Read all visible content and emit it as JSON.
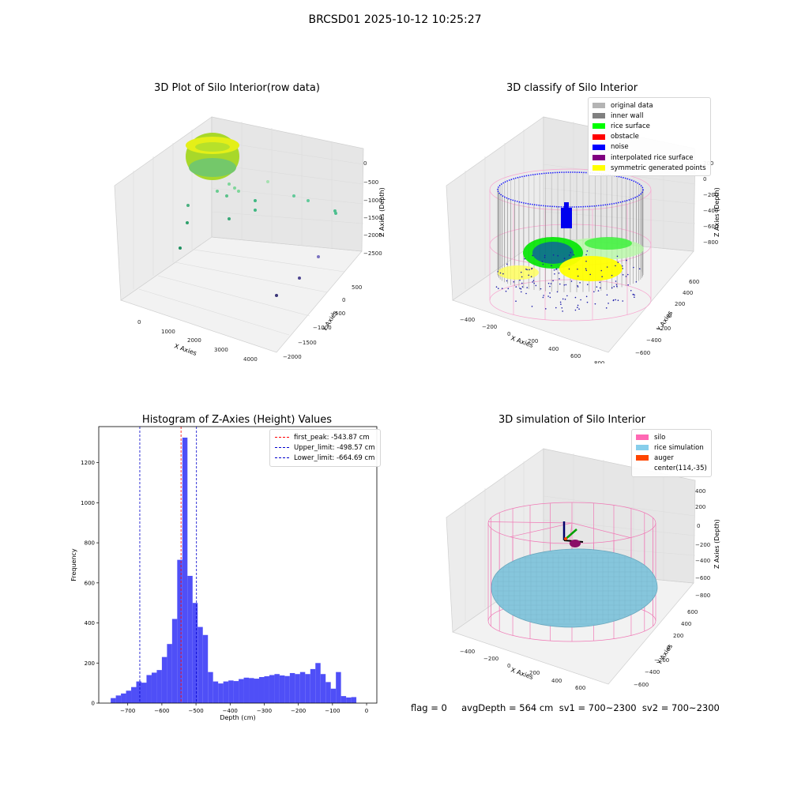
{
  "suptitle": "BRCSD01 2025-10-12 10:25:27",
  "footer": "flag = 0     avgDepth = 564 cm  sv1 = 700~2300  sv2 = 700~2300",
  "colors": {
    "original": "#b4b4b4",
    "inner_wall": "#808080",
    "rice_surface": "#00ff00",
    "obstacle": "#ff0000",
    "noise": "#0000ff",
    "interpolated": "#800080",
    "symmetric": "#ffff00",
    "silo": "#ff69b4",
    "rice_sim": "#87ceeb",
    "auger": "#ff4500",
    "hist_bar": "#4f4ff7",
    "peak_line": "#ff0000",
    "limit_line": "#0000cc"
  },
  "chart_data": [
    {
      "type": "scatter",
      "title": "3D Plot of Silo Interior(row data)",
      "xlabel": "X Axies",
      "ylabel": "Y Axies",
      "zlabel": "Z Axies (Depth)",
      "x_ticks": [
        "0",
        "1000",
        "2000",
        "3000",
        "4000"
      ],
      "y_ticks": [
        "500",
        "0",
        "−500",
        "−1000",
        "−1500",
        "−2000"
      ],
      "z_ticks": [
        "0",
        "−500",
        "−1000",
        "−1500",
        "−2000",
        "−2500"
      ]
    },
    {
      "type": "scatter",
      "title": "3D classify of Silo Interior",
      "xlabel": "X Axies",
      "ylabel": "Y Axies",
      "zlabel": "Z Axies (Depth)",
      "x_ticks": [
        "−400",
        "−200",
        "0",
        "200",
        "400",
        "600",
        "800"
      ],
      "y_ticks": [
        "600",
        "400",
        "200",
        "0",
        "−200",
        "−400",
        "−600"
      ],
      "z_ticks": [
        "200",
        "0",
        "−200",
        "−400",
        "−600",
        "−800"
      ],
      "legend": [
        "original data",
        "inner wall",
        "rice surface",
        "obstacle",
        "noise",
        "interpolated rice surface",
        "symmetric generated points"
      ]
    },
    {
      "type": "bar",
      "title": "Histogram of Z-Axies (Height) Values",
      "xlabel": "Depth (cm)",
      "ylabel": "Frequency",
      "xlim": [
        -785,
        30
      ],
      "ylim": [
        0,
        1380
      ],
      "x_ticks": [
        -700,
        -600,
        -500,
        -400,
        -300,
        -200,
        -100,
        0
      ],
      "y_ticks": [
        0,
        200,
        400,
        600,
        800,
        1000,
        1200
      ],
      "bin_start": -750,
      "bin_width": 15,
      "values": [
        25,
        38,
        48,
        62,
        80,
        108,
        102,
        140,
        152,
        165,
        230,
        295,
        420,
        715,
        1325,
        635,
        500,
        380,
        340,
        155,
        108,
        98,
        108,
        113,
        110,
        120,
        127,
        125,
        122,
        130,
        134,
        140,
        145,
        138,
        135,
        150,
        145,
        155,
        145,
        170,
        200,
        145,
        105,
        72,
        155,
        35,
        28,
        30
      ],
      "lines": [
        {
          "label": "first_peak: -543.87 cm",
          "x": -543.87
        },
        {
          "label": "Upper_limit: -498.57 cm",
          "x": -498.57
        },
        {
          "label": "Lower_limit: -664.69 cm",
          "x": -664.69
        }
      ]
    },
    {
      "type": "scatter",
      "title": "3D simulation of Silo Interior",
      "xlabel": "X Axies",
      "ylabel": "Y Axies",
      "zlabel": "Z Axies (Depth)",
      "x_ticks": [
        "−400",
        "−200",
        "0",
        "200",
        "400",
        "600"
      ],
      "y_ticks": [
        "600",
        "400",
        "200",
        "0",
        "−200",
        "−400",
        "−600"
      ],
      "z_ticks": [
        "400",
        "200",
        "0",
        "−200",
        "−400",
        "−600",
        "−800"
      ],
      "legend": [
        "silo",
        "rice simulation",
        "auger",
        "center(114,-35)"
      ]
    }
  ]
}
